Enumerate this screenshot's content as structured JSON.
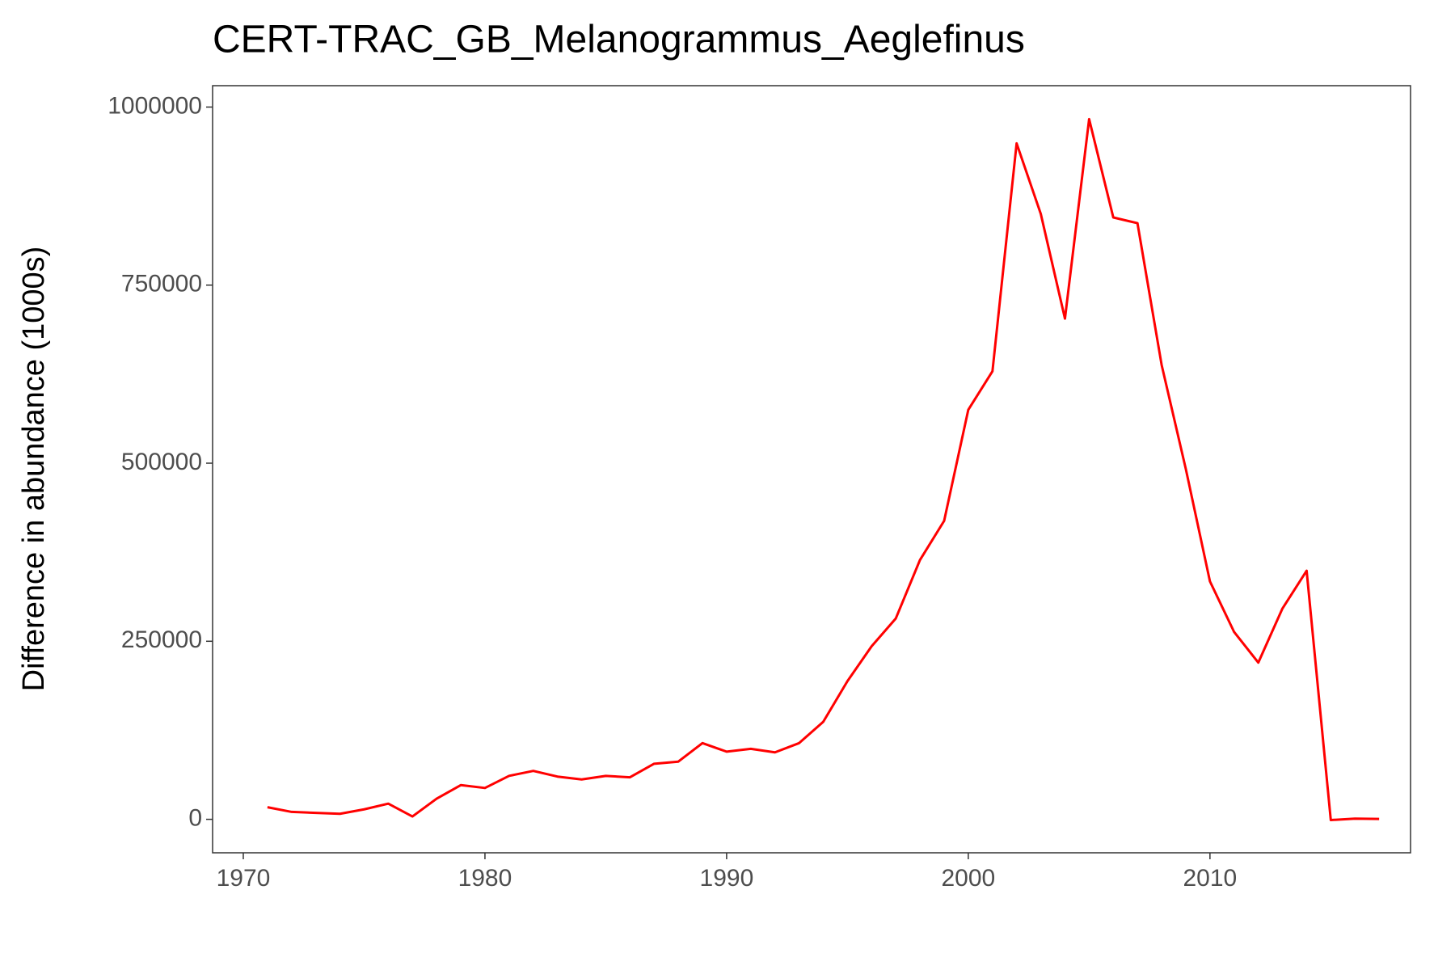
{
  "chart_data": {
    "type": "line",
    "title": "CERT-TRAC_GB_Melanogrammus_Aeglefinus",
    "y_label": "Difference in abundance (1000s)",
    "x": [
      1971,
      1972,
      1973,
      1974,
      1975,
      1976,
      1977,
      1978,
      1979,
      1980,
      1981,
      1982,
      1983,
      1984,
      1985,
      1986,
      1987,
      1988,
      1989,
      1990,
      1991,
      1992,
      1993,
      1994,
      1995,
      1996,
      1997,
      1998,
      1999,
      2000,
      2001,
      2002,
      2003,
      2004,
      2005,
      2006,
      2007,
      2008,
      2009,
      2010,
      2011,
      2012,
      2013,
      2014,
      2015,
      2016,
      2017
    ],
    "series": [
      {
        "name": "abundance",
        "color": "#ff0000",
        "values": [
          17000,
          10400,
          9000,
          7800,
          14000,
          22000,
          4000,
          29000,
          48000,
          44000,
          61000,
          68000,
          60000,
          56000,
          61000,
          59000,
          78000,
          81000,
          107000,
          95000,
          99000,
          94000,
          107000,
          137000,
          194000,
          243000,
          282000,
          364000,
          419000,
          575000,
          629000,
          949000,
          850000,
          703000,
          983000,
          845000,
          837000,
          638000,
          492000,
          334000,
          263000,
          220000,
          296000,
          349000,
          -1000,
          1000,
          500
        ]
      }
    ],
    "xlim": [
      1968.73,
      2018.3
    ],
    "ylim": [
      -47000,
      1030000
    ],
    "xticks": [
      1970,
      1980,
      1990,
      2000,
      2010
    ],
    "yticks": [
      0,
      250000,
      500000,
      750000,
      1000000
    ],
    "grid": false
  }
}
